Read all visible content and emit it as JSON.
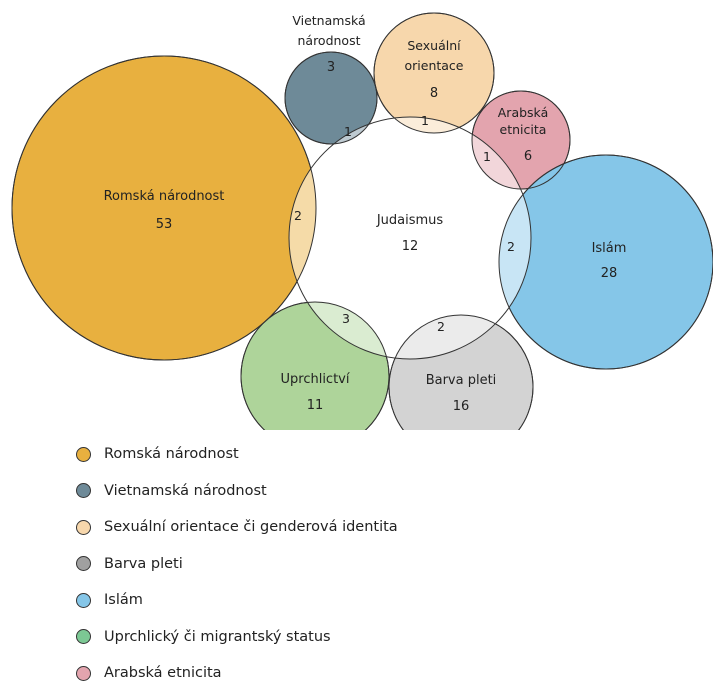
{
  "colors": {
    "romska": "#E8B03F",
    "vietnamska": "#6E8A98",
    "sexualni": "#F7D7AC",
    "arabska": "#E3A4AE",
    "islam": "#85C6E8",
    "uprchlictvi": "#AED49A",
    "barva": "#D3D3D3",
    "judaismus": "#FFFFFF",
    "legend_uprchlicky": "#7CC894"
  },
  "circles": {
    "judaismus": {
      "name": "Judaismus",
      "value": "12"
    },
    "romska": {
      "name": "Romská národnost",
      "value": "53"
    },
    "vietnamska": {
      "name_line1": "Vietnamská",
      "name_line2": "národnost",
      "value": "3"
    },
    "sexualni": {
      "name_line1": "Sexuální",
      "name_line2": "orientace",
      "value": "8"
    },
    "arabska": {
      "name_line1": "Arabská",
      "name_line2": "etnicita",
      "value": "6"
    },
    "islam": {
      "name": "Islám",
      "value": "28"
    },
    "barva": {
      "name": "Barva pleti",
      "value": "16"
    },
    "uprchlictvi": {
      "name": "Uprchlictví",
      "value": "11"
    }
  },
  "overlaps": {
    "judaismus_vietnamska": "1",
    "judaismus_sexualni": "1",
    "judaismus_arabska": "1",
    "judaismus_romska": "2",
    "judaismus_islam": "2",
    "judaismus_uprchlictvi": "3",
    "judaismus_barva": "2"
  },
  "legend": [
    {
      "label": "Romská národnost",
      "color": "#E8B03F"
    },
    {
      "label": "Vietnamská národnost",
      "color": "#6E8A98"
    },
    {
      "label": "Sexuální orientace či genderová identita",
      "color": "#F7D7AC"
    },
    {
      "label": "Barva pleti",
      "color": "#A0A0A0"
    },
    {
      "label": "Islám",
      "color": "#85C6E8"
    },
    {
      "label": "Uprchlický či migrantský status",
      "color": "#7CC894"
    },
    {
      "label": "Arabská etnicita",
      "color": "#E3A4AE"
    }
  ]
}
